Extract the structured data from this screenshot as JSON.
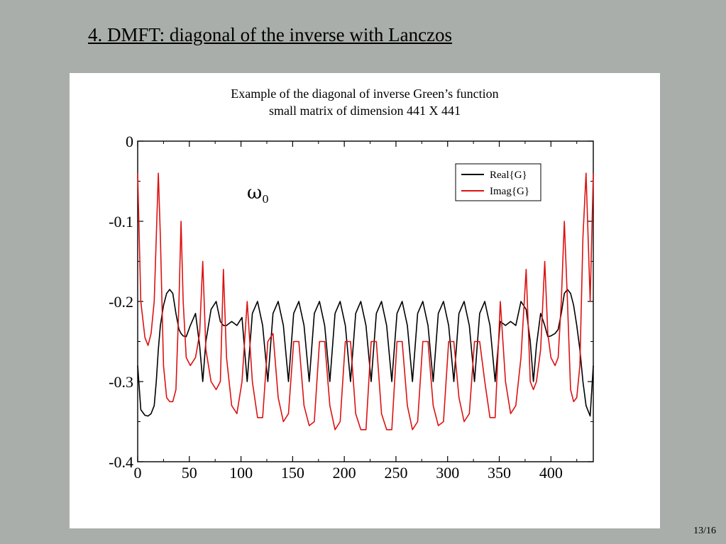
{
  "slide": {
    "title": "4. DMFT: diagonal of the inverse with Lanczos",
    "page_number": "13/16"
  },
  "figure": {
    "caption_line1": "Example of the diagonal of inverse Green’s function",
    "caption_line2": "small matrix of dimension 441 X 441"
  },
  "chart_data": {
    "type": "line",
    "annotation": "ω0",
    "xlim": [
      0,
      441
    ],
    "ylim": [
      -0.4,
      0
    ],
    "x_ticks": [
      0,
      50,
      100,
      150,
      200,
      250,
      300,
      350,
      400
    ],
    "y_ticks": [
      0,
      -0.1,
      -0.2,
      -0.3,
      -0.4
    ],
    "y_tick_labels": [
      "0",
      "-0.1",
      "-0.2",
      "-0.3",
      "-0.4"
    ],
    "legend_position": "top-right",
    "grid": false,
    "x": [
      0,
      3,
      7,
      10,
      13,
      16,
      18,
      20,
      22,
      25,
      28,
      31,
      34,
      37,
      40,
      42,
      44,
      47,
      51,
      56,
      60,
      63,
      66,
      71,
      76,
      80,
      83,
      86,
      91,
      96,
      101,
      106,
      111,
      116,
      121,
      126,
      131,
      136,
      141,
      146,
      151,
      156,
      161,
      166,
      171,
      176,
      181,
      186,
      191,
      196,
      201,
      206,
      211,
      216,
      221,
      226,
      231,
      236,
      241,
      246,
      251,
      256,
      261,
      266,
      271,
      276,
      281,
      286,
      291,
      296,
      301,
      306,
      311,
      316,
      321,
      326,
      331,
      336,
      341,
      346,
      351,
      356,
      361,
      366,
      371,
      376,
      380,
      383,
      386,
      390,
      394,
      397,
      400,
      404,
      407,
      410,
      413,
      416,
      419,
      422,
      425,
      428,
      431,
      434,
      438,
      441
    ],
    "series": [
      {
        "name": "Real{G}",
        "color": "#000000",
        "values": [
          -0.28,
          -0.335,
          -0.342,
          -0.343,
          -0.34,
          -0.33,
          -0.3,
          -0.26,
          -0.23,
          -0.205,
          -0.19,
          -0.185,
          -0.19,
          -0.215,
          -0.235,
          -0.24,
          -0.243,
          -0.244,
          -0.23,
          -0.215,
          -0.255,
          -0.3,
          -0.25,
          -0.21,
          -0.2,
          -0.225,
          -0.23,
          -0.23,
          -0.225,
          -0.23,
          -0.22,
          -0.3,
          -0.215,
          -0.2,
          -0.23,
          -0.3,
          -0.215,
          -0.2,
          -0.23,
          -0.3,
          -0.215,
          -0.2,
          -0.23,
          -0.3,
          -0.215,
          -0.2,
          -0.23,
          -0.3,
          -0.215,
          -0.2,
          -0.23,
          -0.3,
          -0.215,
          -0.2,
          -0.23,
          -0.3,
          -0.215,
          -0.2,
          -0.23,
          -0.3,
          -0.215,
          -0.2,
          -0.23,
          -0.3,
          -0.215,
          -0.2,
          -0.23,
          -0.3,
          -0.215,
          -0.2,
          -0.23,
          -0.3,
          -0.215,
          -0.2,
          -0.23,
          -0.3,
          -0.215,
          -0.2,
          -0.23,
          -0.3,
          -0.225,
          -0.23,
          -0.225,
          -0.23,
          -0.2,
          -0.21,
          -0.25,
          -0.3,
          -0.255,
          -0.215,
          -0.23,
          -0.244,
          -0.243,
          -0.24,
          -0.235,
          -0.215,
          -0.19,
          -0.185,
          -0.19,
          -0.205,
          -0.23,
          -0.26,
          -0.3,
          -0.33,
          -0.343,
          -0.28
        ]
      },
      {
        "name": "Imag{G}",
        "color": "#dd1111",
        "values": [
          -0.04,
          -0.2,
          -0.245,
          -0.255,
          -0.24,
          -0.2,
          -0.12,
          -0.04,
          -0.12,
          -0.28,
          -0.32,
          -0.325,
          -0.325,
          -0.31,
          -0.2,
          -0.1,
          -0.2,
          -0.27,
          -0.28,
          -0.27,
          -0.24,
          -0.15,
          -0.26,
          -0.3,
          -0.31,
          -0.3,
          -0.16,
          -0.27,
          -0.33,
          -0.34,
          -0.3,
          -0.2,
          -0.3,
          -0.345,
          -0.345,
          -0.25,
          -0.24,
          -0.32,
          -0.35,
          -0.34,
          -0.25,
          -0.25,
          -0.33,
          -0.355,
          -0.35,
          -0.25,
          -0.25,
          -0.33,
          -0.36,
          -0.35,
          -0.25,
          -0.25,
          -0.34,
          -0.36,
          -0.36,
          -0.25,
          -0.25,
          -0.34,
          -0.36,
          -0.36,
          -0.25,
          -0.25,
          -0.33,
          -0.36,
          -0.35,
          -0.25,
          -0.25,
          -0.33,
          -0.355,
          -0.35,
          -0.25,
          -0.25,
          -0.32,
          -0.35,
          -0.34,
          -0.25,
          -0.25,
          -0.3,
          -0.345,
          -0.345,
          -0.2,
          -0.3,
          -0.34,
          -0.33,
          -0.27,
          -0.16,
          -0.3,
          -0.31,
          -0.3,
          -0.26,
          -0.15,
          -0.24,
          -0.27,
          -0.28,
          -0.27,
          -0.2,
          -0.1,
          -0.2,
          -0.31,
          -0.325,
          -0.32,
          -0.28,
          -0.12,
          -0.04,
          -0.2,
          -0.04
        ]
      }
    ]
  }
}
